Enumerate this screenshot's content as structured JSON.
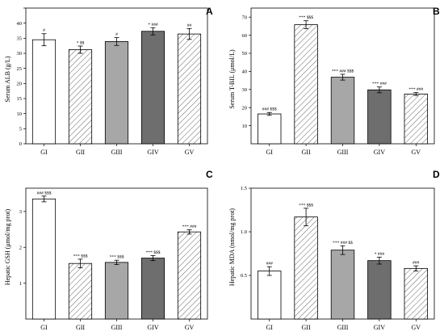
{
  "chart_data": [
    {
      "type": "bar",
      "panel_label": "A",
      "ylabel": "Serum ALB (g/L)",
      "categories": [
        "GI",
        "GII",
        "GIII",
        "GIV",
        "GV"
      ],
      "values": [
        34.5,
        31.2,
        33.9,
        37.3,
        36.4
      ],
      "errors": [
        2.0,
        1.2,
        1.3,
        1.2,
        1.8
      ],
      "significance": [
        "#",
        "* $$",
        "#",
        "* ###",
        "##"
      ],
      "ylim": [
        0,
        45
      ],
      "yticks": [
        0,
        5,
        10,
        15,
        20,
        25,
        30,
        35,
        40,
        45
      ],
      "ytick_labels": [
        "0",
        "5",
        "10",
        "15",
        "20",
        "25",
        "30",
        "35",
        "40",
        ""
      ],
      "patterns": [
        "white",
        "hatch",
        "lightgray",
        "darkgray",
        "hatch"
      ],
      "grid": false
    },
    {
      "type": "bar",
      "panel_label": "B",
      "ylabel": "Serum T-BIL (μmol/L)",
      "categories": [
        "GI",
        "GII",
        "GIII",
        "GIV",
        "GV"
      ],
      "values": [
        16.5,
        65.8,
        36.8,
        29.8,
        27.5
      ],
      "errors": [
        0.8,
        2.2,
        1.6,
        1.6,
        0.8
      ],
      "significance": [
        "### $$$",
        "*** $$$",
        "*** ### $$$",
        "*** ###",
        "*** ###"
      ],
      "ylim": [
        0,
        75
      ],
      "yticks": [
        10,
        20,
        30,
        40,
        50,
        60,
        70
      ],
      "ytick_labels": [
        "10",
        "20",
        "30",
        "40",
        "50",
        "60",
        "70"
      ],
      "patterns": [
        "white",
        "hatch",
        "lightgray",
        "darkgray",
        "hatch"
      ],
      "grid": false
    },
    {
      "type": "bar",
      "panel_label": "C",
      "ylabel": "Hepatic GSH (μmol/mg prot)",
      "categories": [
        "GI",
        "GII",
        "GIII",
        "GIV",
        "GV"
      ],
      "values": [
        3.35,
        1.55,
        1.58,
        1.7,
        2.43
      ],
      "errors": [
        0.08,
        0.12,
        0.06,
        0.07,
        0.06
      ],
      "significance": [
        "### $$$",
        "*** $$$",
        "*** $$$",
        "*** $$$",
        "*** ###"
      ],
      "ylim": [
        0,
        3.65
      ],
      "yticks": [
        1,
        2,
        3
      ],
      "ytick_labels": [
        "1",
        "2",
        "3"
      ],
      "patterns": [
        "white",
        "hatch",
        "lightgray",
        "darkgray",
        "hatch"
      ],
      "grid": false
    },
    {
      "type": "bar",
      "panel_label": "D",
      "ylabel": "Hepatic MDA (nmol/mg prot)",
      "categories": [
        "GI",
        "GII",
        "GIII",
        "GIV",
        "GV"
      ],
      "values": [
        0.55,
        1.17,
        0.79,
        0.67,
        0.58
      ],
      "errors": [
        0.05,
        0.1,
        0.05,
        0.04,
        0.03
      ],
      "significance": [
        "###",
        "*** $$$",
        "*** ### $$",
        "* ###",
        "###"
      ],
      "ylim": [
        0,
        1.5
      ],
      "yticks": [
        0.5,
        1.0,
        1.5
      ],
      "ytick_labels": [
        "0.5",
        "1.0",
        "1.5"
      ],
      "patterns": [
        "white",
        "hatch",
        "lightgray",
        "darkgray",
        "hatch"
      ],
      "grid": false
    }
  ],
  "colors": {
    "lightgray": "#a7a7a7",
    "darkgray": "#6e6e6e",
    "hatch_line": "#555555",
    "axis": "#000000"
  }
}
